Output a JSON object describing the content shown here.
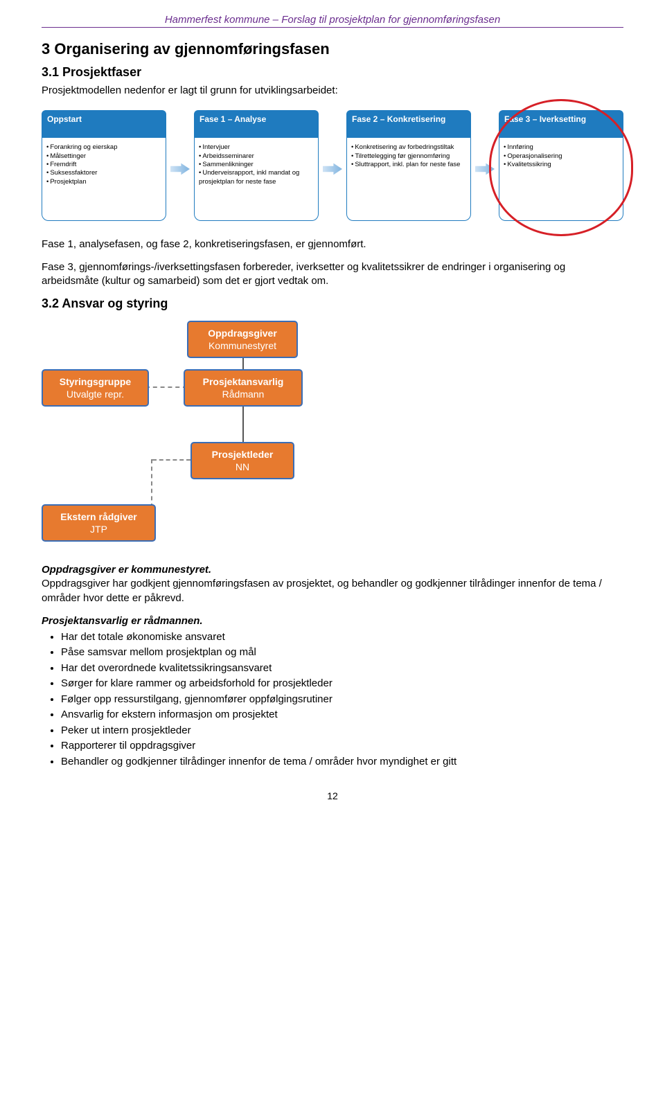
{
  "header": "Hammerfest kommune – Forslag til prosjektplan for gjennomføringsfasen",
  "h2": "3 Organisering av gjennomføringsfasen",
  "h3_1": "3.1 Prosjektfaser",
  "intro1": "Prosjektmodellen nedenfor er lagt til grunn for utviklingsarbeidet:",
  "phases": [
    {
      "title": "Oppstart",
      "items": [
        "Forankring og eierskap",
        "Målsettinger",
        "Fremdrift",
        "Suksessfaktorer",
        "Prosjektplan"
      ]
    },
    {
      "title": "Fase 1 – Analyse",
      "items": [
        "Intervjuer",
        "Arbeidsseminarer",
        "Sammenlikninger",
        "Underveisrapport, inkl mandat og prosjektplan for neste fase"
      ]
    },
    {
      "title": "Fase 2 – Konkretisering",
      "items": [
        "Konkretisering av forbedringstiltak",
        "Tilrettelegging før gjennomføring",
        "Sluttrapport, inkl. plan for neste fase"
      ]
    },
    {
      "title": "Fase 3 – Iverksetting",
      "items": [
        "Innføring",
        "Operasjonalisering",
        "Kvalitetssikring"
      ]
    }
  ],
  "para_after_phases_1": "Fase 1, analysefasen, og fase 2, konkretiseringsfasen, er gjennomført.",
  "para_after_phases_2": "Fase 3, gjennomførings-/iverksettingsfasen forbereder, iverksetter og kvalitetssikrer de endringer i organisering og arbeidsmåte (kultur og samarbeid) som det er gjort vedtak om.",
  "h3_2": "3.2 Ansvar og styring",
  "org": {
    "oppdrag": {
      "t1": "Oppdragsgiver",
      "t2": "Kommunestyret"
    },
    "styring": {
      "t1": "Styringsgruppe",
      "t2": "Utvalgte repr."
    },
    "ansvarlig": {
      "t1": "Prosjektansvarlig",
      "t2": "Rådmann"
    },
    "leder": {
      "t1": "Prosjektleder",
      "t2": "NN"
    },
    "ekstern": {
      "t1": "Ekstern rådgiver",
      "t2": "JTP"
    }
  },
  "oppdrag_head": "Oppdragsgiver er kommunestyret.",
  "oppdrag_body": "Oppdragsgiver har godkjent gjennomføringsfasen av prosjektet, og behandler og godkjenner tilrådinger innenfor de tema / områder hvor dette er påkrevd.",
  "ansvarlig_head": "Prosjektansvarlig er rådmannen.",
  "ansvarlig_bullets": [
    "Har det totale økonomiske ansvaret",
    "Påse samsvar mellom prosjektplan og mål",
    "Har det overordnede kvalitetssikringsansvaret",
    "Sørger for klare rammer og arbeidsforhold for prosjektleder",
    "Følger opp ressurstilgang, gjennomfører oppfølgingsrutiner",
    "Ansvarlig for ekstern informasjon om prosjektet",
    "Peker ut intern prosjektleder",
    "Rapporterer til oppdragsgiver",
    "Behandler og godkjenner tilrådinger innenfor de tema / områder hvor myndighet er gitt"
  ],
  "pagenum": "12",
  "colors": {
    "purple": "#6a2d8e",
    "blue": "#1f7bbf",
    "red": "#d62027",
    "orange": "#e77a2f",
    "boxborder": "#3a6db5"
  }
}
